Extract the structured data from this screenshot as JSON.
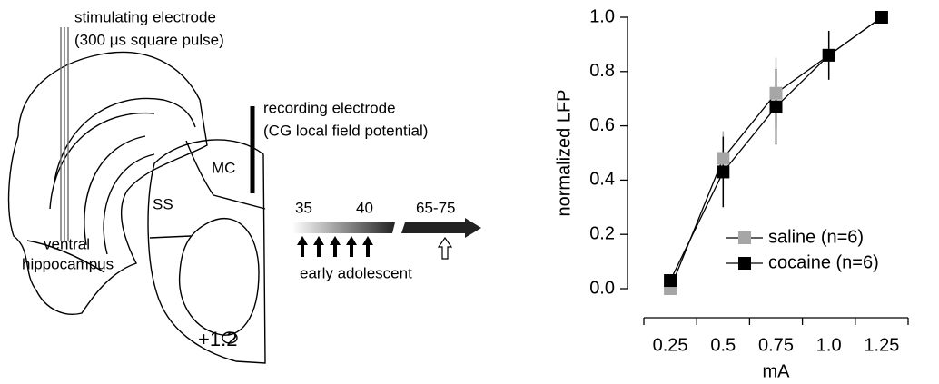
{
  "diagram": {
    "stim_label": "stimulating electrode",
    "stim_detail": "(300 μs square pulse)",
    "rec_label": "recording electrode",
    "rec_detail": "(CG local field potential)",
    "region_mc": "MC",
    "region_ss": "SS",
    "hippo_1": "ventral",
    "hippo_2": "hippocampus",
    "bregma": "+1.2",
    "age_start": "35",
    "age_end": "40",
    "age_test": "65-75",
    "period": "early adolescent"
  },
  "chart_data": {
    "type": "line",
    "x_label": "mA",
    "y_label": "normalized LFP",
    "categories": [
      "0.25",
      "0.5",
      "0.75",
      "1.0",
      "1.25"
    ],
    "ylim": [
      0,
      1
    ],
    "yticks": [
      {
        "value": 0,
        "label": "0.0"
      },
      0.2,
      0.4,
      0.6,
      0.8,
      {
        "value": 1,
        "label": "1.0"
      }
    ],
    "grid": false,
    "legend": "lower right",
    "series": [
      {
        "name": "saline (n=6)",
        "color": "#a6a6a6",
        "values": [
          0.0,
          0.48,
          0.72,
          0.86,
          1.0
        ],
        "errors": [
          0,
          0.1,
          0.13,
          0.09,
          0
        ]
      },
      {
        "name": "cocaine (n=6)",
        "color": "#000000",
        "values": [
          0.03,
          0.43,
          0.67,
          0.86,
          1.0
        ],
        "errors": [
          0,
          0.13,
          0.14,
          0.09,
          0
        ]
      }
    ]
  }
}
